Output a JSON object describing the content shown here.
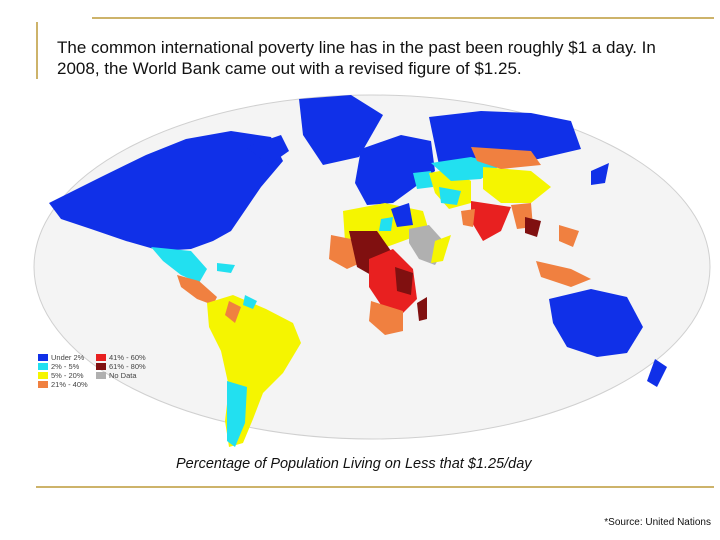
{
  "intro_text": "The common international poverty line has in the past been roughly $1 a day. In 2008, the World Bank came out with a revised figure of $1.25.",
  "map": {
    "caption": "Percentage of Population Living on Less that $1.25/day",
    "legend": [
      {
        "label": "Under 2%",
        "color": "#1030e8"
      },
      {
        "label": "2% - 5%",
        "color": "#22e0f0"
      },
      {
        "label": "5% - 20%",
        "color": "#f5f500"
      },
      {
        "label": "21% - 40%",
        "color": "#f08040"
      },
      {
        "label": "41% - 60%",
        "color": "#e82020"
      },
      {
        "label": "61% - 80%",
        "color": "#801010"
      },
      {
        "label": "No Data",
        "color": "#b0b0b0"
      }
    ]
  },
  "source": "*Source: United Nations"
}
